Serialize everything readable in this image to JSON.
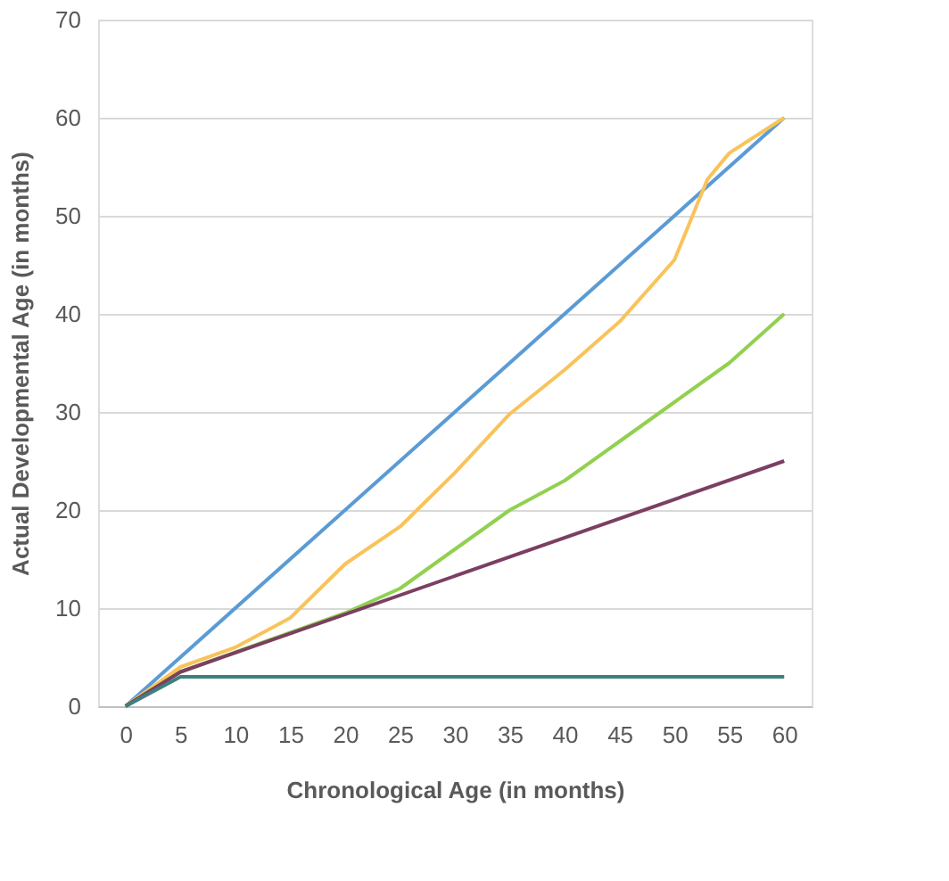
{
  "chart_data": {
    "type": "line",
    "xlabel": "Chronological Age (in months)",
    "ylabel": "Actual Developmental Age (in months)",
    "xlim": [
      -2.5,
      62.5
    ],
    "xticks": [
      0,
      5,
      10,
      15,
      20,
      25,
      30,
      35,
      40,
      45,
      50,
      55,
      60
    ],
    "ylim": [
      0,
      70
    ],
    "yticks": [
      0,
      10,
      20,
      30,
      40,
      50,
      60,
      70
    ],
    "grid": "y",
    "legend": false,
    "marker": "none",
    "line_style": "solid",
    "series": [
      {
        "color": "#5b9bd5",
        "x": [
          0,
          60
        ],
        "values": [
          0,
          60
        ]
      },
      {
        "color": "#f9c35a",
        "x": [
          0,
          5,
          10,
          15,
          20,
          25,
          30,
          35,
          40,
          45,
          50,
          53,
          55,
          60
        ],
        "values": [
          0,
          4,
          6,
          9,
          14.5,
          18.3,
          23.8,
          29.8,
          34.3,
          39.2,
          45.5,
          53.7,
          56.4,
          60
        ]
      },
      {
        "color": "#92d050",
        "x": [
          0,
          5,
          10,
          15,
          20,
          25,
          30,
          35,
          40,
          45,
          50,
          55,
          60
        ],
        "values": [
          0,
          3.5,
          5.5,
          7.5,
          9.5,
          12,
          16,
          20,
          23,
          27,
          31,
          35,
          40
        ]
      },
      {
        "color": "#7b3f61",
        "x": [
          0,
          5,
          60
        ],
        "values": [
          0,
          3.5,
          25
        ]
      },
      {
        "color": "#3f7f7f",
        "x": [
          0,
          5,
          60
        ],
        "values": [
          0,
          3,
          3
        ]
      }
    ]
  }
}
